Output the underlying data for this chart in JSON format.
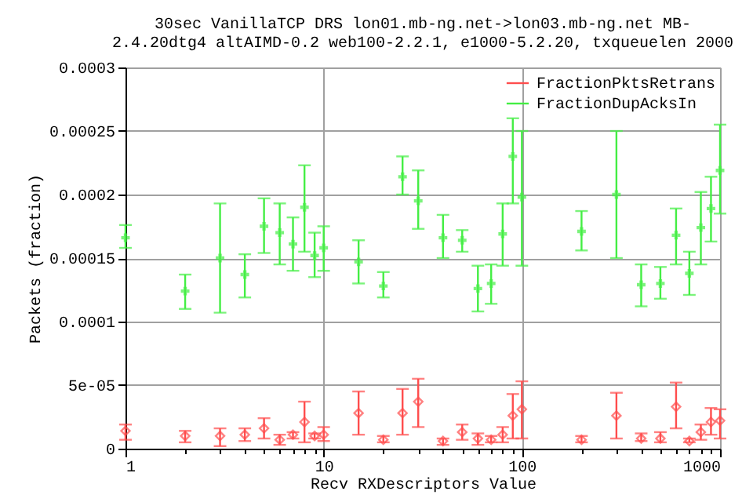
{
  "chart_data": {
    "type": "scatter",
    "title": [
      "30sec VanillaTCP DRS lon01.mb-ng.net->lon03.mb-ng.net MB-",
      "2.4.20dtg4 altAIMD-0.2 web100-2.2.1, e1000-5.2.20, txqueuelen 2000"
    ],
    "xlabel": "Recv RXDescriptors Value",
    "ylabel": "Packets (fraction)",
    "x": [
      1,
      2,
      3,
      4,
      5,
      6,
      7,
      8,
      9,
      10,
      15,
      20,
      25,
      30,
      40,
      50,
      60,
      70,
      80,
      90,
      100,
      200,
      300,
      400,
      500,
      600,
      700,
      800,
      900,
      1000
    ],
    "series": [
      {
        "name": "FractionPktsRetrans",
        "color": "#ff4d4d",
        "marker": "diamond",
        "values": [
          1.4e-05,
          1e-05,
          1e-05,
          1.1e-05,
          1.6e-05,
          7e-06,
          1.1e-05,
          2.1e-05,
          1e-05,
          1.1e-05,
          2.8e-05,
          7e-06,
          2.8e-05,
          3.7e-05,
          6e-06,
          1.3e-05,
          8e-06,
          7e-06,
          1.1e-05,
          2.6e-05,
          3.1e-05,
          7e-06,
          2.6e-05,
          8e-06,
          8e-06,
          3.3e-05,
          6e-06,
          1.3e-05,
          2.1e-05,
          2.2e-05
        ],
        "errors": [
          [
            7e-06,
            1.9e-05
          ],
          [
            5e-06,
            1.4e-05
          ],
          [
            2e-06,
            1.6e-05
          ],
          [
            6e-06,
            1.6e-05
          ],
          [
            8e-06,
            2.4e-05
          ],
          [
            3e-06,
            1.1e-05
          ],
          [
            8e-06,
            1.3e-05
          ],
          [
            5e-06,
            3.7e-05
          ],
          [
            8e-06,
            1.2e-05
          ],
          [
            6e-06,
            1.7e-05
          ],
          [
            1.1e-05,
            4.5e-05
          ],
          [
            5e-06,
            1e-05
          ],
          [
            1.1e-05,
            4.7e-05
          ],
          [
            1.7e-05,
            5.5e-05
          ],
          [
            3e-06,
            8e-06
          ],
          [
            7e-06,
            1.9e-05
          ],
          [
            3e-06,
            1.2e-05
          ],
          [
            5e-06,
            1e-05
          ],
          [
            5e-06,
            1.7e-05
          ],
          [
            8e-06,
            4.3e-05
          ],
          [
            8e-06,
            5.3e-05
          ],
          [
            5e-06,
            1e-05
          ],
          [
            8e-06,
            4.4e-05
          ],
          [
            6e-06,
            1.2e-05
          ],
          [
            5e-06,
            1.3e-05
          ],
          [
            1.6e-05,
            5.2e-05
          ],
          [
            5e-06,
            8e-06
          ],
          [
            7e-06,
            1.9e-05
          ],
          [
            1.1e-05,
            3.2e-05
          ],
          [
            8e-06,
            3.1e-05
          ]
        ]
      },
      {
        "name": "FractionDupAcksIn",
        "color": "#44ee44",
        "marker": "cross",
        "values": [
          0.000166,
          0.000124,
          0.00015,
          0.000137,
          0.000175,
          0.00017,
          0.000161,
          0.00019,
          0.000152,
          0.000158,
          0.000147,
          0.000128,
          0.000214,
          0.000195,
          0.000166,
          0.000164,
          0.000126,
          0.00013,
          0.000169,
          0.00023,
          0.000198,
          0.000171,
          0.0002,
          0.000129,
          0.00013,
          0.000168,
          0.000138,
          0.000174,
          0.000189,
          0.000219
        ],
        "errors": [
          [
            0.000158,
            0.000176
          ],
          [
            0.00011,
            0.000137
          ],
          [
            0.000107,
            0.000193
          ],
          [
            0.000119,
            0.000153
          ],
          [
            0.000154,
            0.000197
          ],
          [
            0.000145,
            0.000193
          ],
          [
            0.00014,
            0.000182
          ],
          [
            0.000155,
            0.000223
          ],
          [
            0.000135,
            0.00017
          ],
          [
            0.00014,
            0.000175
          ],
          [
            0.00013,
            0.000164
          ],
          [
            0.000119,
            0.000139
          ],
          [
            0.0002,
            0.00023
          ],
          [
            0.000173,
            0.000219
          ],
          [
            0.00015,
            0.000184
          ],
          [
            0.000155,
            0.000172
          ],
          [
            0.000108,
            0.000144
          ],
          [
            0.000114,
            0.000145
          ],
          [
            0.000144,
            0.000193
          ],
          [
            0.000193,
            0.00026
          ],
          [
            0.000144,
            0.00025
          ],
          [
            0.000156,
            0.000187
          ],
          [
            0.00015,
            0.00025
          ],
          [
            0.000112,
            0.000145
          ],
          [
            0.000118,
            0.000143
          ],
          [
            0.000145,
            0.000189
          ],
          [
            0.000121,
            0.000155
          ],
          [
            0.000145,
            0.000202
          ],
          [
            0.000163,
            0.000214
          ],
          [
            0.000185,
            0.000255
          ]
        ]
      }
    ],
    "log": "x",
    "xlim": [
      1,
      1000
    ],
    "xticks": [
      1,
      {
        "value": 2,
        "label": null
      },
      {
        "value": 3,
        "label": null
      },
      {
        "value": 4,
        "label": null
      },
      {
        "value": 5,
        "label": null
      },
      {
        "value": 6,
        "label": null
      },
      {
        "value": 7,
        "label": null
      },
      {
        "value": 8,
        "label": null
      },
      {
        "value": 9,
        "label": null
      },
      10,
      {
        "value": 20,
        "label": null
      },
      {
        "value": 30,
        "label": null
      },
      {
        "value": 40,
        "label": null
      },
      {
        "value": 50,
        "label": null
      },
      {
        "value": 60,
        "label": null
      },
      {
        "value": 70,
        "label": null
      },
      {
        "value": 80,
        "label": null
      },
      {
        "value": 90,
        "label": null
      },
      100,
      {
        "value": 200,
        "label": null
      },
      {
        "value": 300,
        "label": null
      },
      {
        "value": 400,
        "label": null
      },
      {
        "value": 500,
        "label": null
      },
      {
        "value": 600,
        "label": null
      },
      {
        "value": 700,
        "label": null
      },
      {
        "value": 800,
        "label": null
      },
      {
        "value": 900,
        "label": null
      },
      1000
    ],
    "ylim": [
      0,
      0.0003
    ],
    "yticks": [
      0,
      {
        "value": 5e-05,
        "label": "5e-05"
      },
      0.0001,
      0.00015,
      0.0002,
      0.00025,
      0.0003
    ],
    "grid": true,
    "legend": "top right"
  }
}
